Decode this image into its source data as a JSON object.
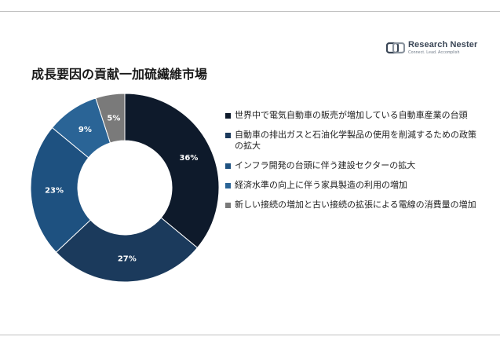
{
  "brand": {
    "name": "Research Nester",
    "tagline": "Connect. Lead. Accomplish"
  },
  "colors": {
    "series": [
      "#0e1a2b",
      "#1b3a5c",
      "#1e5180",
      "#2a6496",
      "#7a7a7a"
    ]
  },
  "chart_data": {
    "type": "pie",
    "variant": "donut",
    "title": "成長要因の貢献一加硫繊維市場",
    "legend_position": "right",
    "series": [
      {
        "name": "世界中で電気自動車の販売が増加している自動車産業の台頭",
        "value": 36,
        "label": "36%"
      },
      {
        "name": "自動車の排出ガスと石油化学製品の使用を削減するための政策の拡大",
        "value": 27,
        "label": "27%"
      },
      {
        "name": "インフラ開発の台頭に伴う建設セクターの拡大",
        "value": 23,
        "label": "23%"
      },
      {
        "name": "経済水準の向上に伴う家具製造の利用の増加",
        "value": 9,
        "label": "9%"
      },
      {
        "name": "新しい接続の増加と古い接続の拡張による電線の消費量の増加",
        "value": 5,
        "label": "5%"
      }
    ]
  }
}
